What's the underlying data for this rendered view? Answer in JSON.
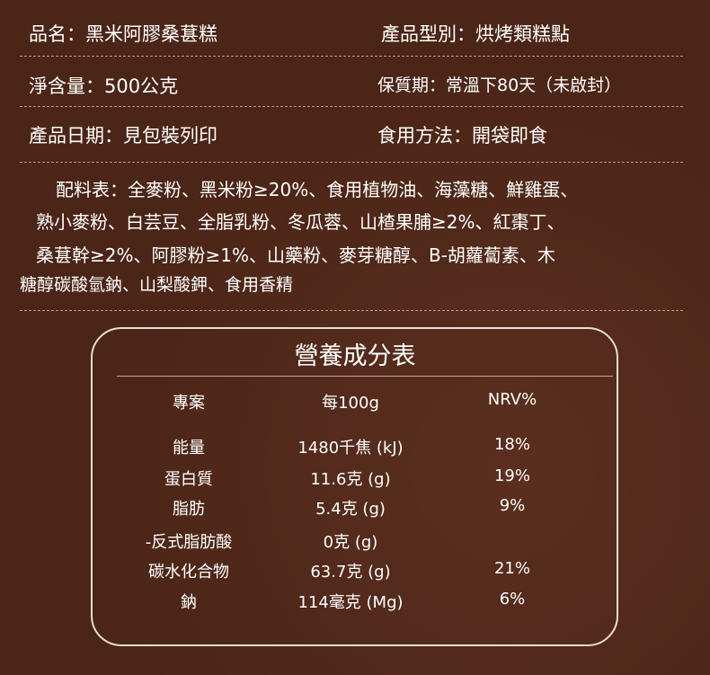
{
  "info": {
    "name": "品名：黑米阿膠桑葚糕",
    "type": "產品型別：烘烤類糕點",
    "weight": "淨含量：500公克",
    "shelf": "保質期：常溫下80天（未啟封）",
    "date": "產品日期：見包裝列印",
    "usage": "食用方法：開袋即食"
  },
  "ingredients": [
    "配料表：全麥粉、黑米粉≥20%、食用植物油、海藻糖、鮮雞蛋、",
    "熟小麥粉、白芸豆、全脂乳粉、冬瓜蓉、山楂果脯≥2%、紅棗丁、",
    "桑葚幹≥2%、阿膠粉≥1%、山藥粉、麥芽糖醇、B-胡蘿蔔素、木",
    "糖醇碳酸氫鈉、山梨酸鉀、食用香精"
  ],
  "nutrition": {
    "title": "營養成分表",
    "headers": [
      "專案",
      "每100g",
      "NRV%"
    ],
    "rows": [
      [
        "能量",
        "1480千焦 (kJ)",
        "18%"
      ],
      [
        "蛋白質",
        "11.6克 (g)",
        "19%"
      ],
      [
        "脂肪",
        "5.4克 (g)",
        "9%"
      ],
      [
        "-反式脂肪酸",
        "0克 (g)",
        ""
      ],
      [
        "碳水化合物",
        "63.7克 (g)",
        "21%"
      ],
      [
        "鈉",
        "114毫克 (Mg)",
        "6%"
      ]
    ]
  },
  "colors": {
    "background": "#4b2517",
    "text": "#ffffff"
  }
}
